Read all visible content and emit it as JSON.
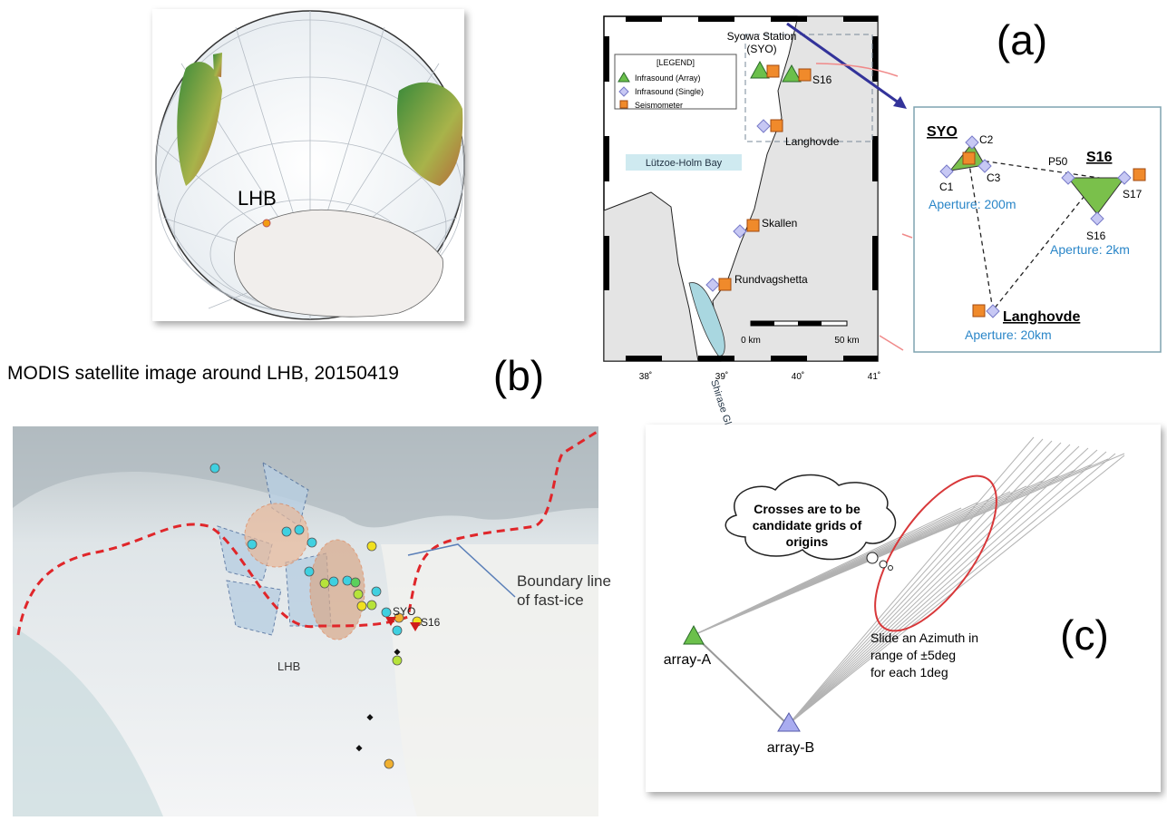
{
  "globe": {
    "label": "LHB"
  },
  "panel_a": {
    "label": "(a)",
    "station": [
      "Syowa Station",
      "(SYO)"
    ],
    "legend": {
      "title": "[LEGEND]",
      "items": [
        "Infrasound (Array)",
        "Infrasound (Single)",
        "Seismometer"
      ]
    },
    "places": [
      "S16",
      "Langhovde",
      "Skallen",
      "Rundvagshetta"
    ],
    "bay": "Lützoe-Holm Bay",
    "glacier": "Shirase Glacier",
    "scale": [
      "0 km",
      "50 km"
    ],
    "longitudes": [
      "38˚",
      "39˚",
      "40˚",
      "41˚"
    ],
    "inset": {
      "groups": [
        "SYO",
        "S16",
        "Langhovde"
      ],
      "stations": [
        "C2",
        "C1",
        "C3",
        "P50",
        "S17",
        "S16"
      ],
      "apertures": [
        "Aperture: 200m",
        "Aperture: 2km",
        "Aperture: 20km"
      ]
    }
  },
  "panel_b": {
    "caption": "MODIS satellite image around LHB, 20150419",
    "label": "(b)",
    "annotation": [
      "Boundary line",
      "of fast-ice"
    ],
    "sites": [
      "SYO",
      "S16",
      "LHB"
    ]
  },
  "panel_c": {
    "bubble": [
      "Crosses are to be",
      "candidate grids of",
      "origins"
    ],
    "note": [
      "Slide an Azimuth in",
      "range of ±5deg",
      "for each 1deg"
    ],
    "arrays": [
      "array-A",
      "array-B"
    ],
    "label": "(c)"
  }
}
